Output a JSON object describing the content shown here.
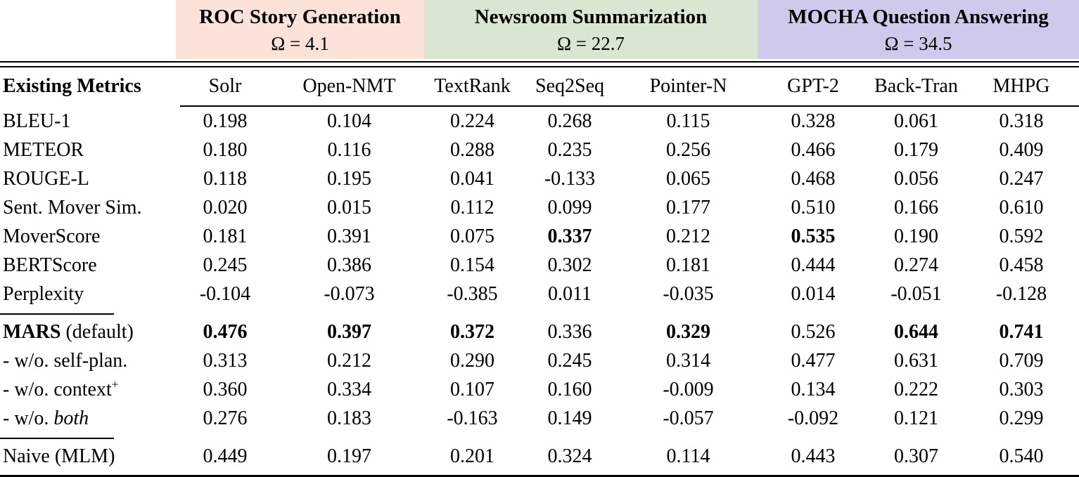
{
  "table": {
    "groups": [
      {
        "title": "ROC Story Generation",
        "omega": "Ω = 4.1",
        "bg": "#fbe2d9"
      },
      {
        "title": "Newsroom Summarization",
        "omega": "Ω = 22.7",
        "bg": "#d9e7d2"
      },
      {
        "title": "MOCHA Question Answering",
        "omega": "Ω = 34.5",
        "bg": "#cfc9ec"
      }
    ],
    "header": {
      "label": "Existing Metrics",
      "columns": [
        "Solr",
        "Open-NMT",
        "TextRank",
        "Seq2Seq",
        "Pointer-N",
        "GPT-2",
        "Back-Tran",
        "MHPG"
      ]
    },
    "rows": [
      {
        "label": [
          {
            "t": "BLEU-1"
          }
        ],
        "values": [
          "0.198",
          "0.104",
          "0.224",
          "0.268",
          "0.115",
          "0.328",
          "0.061",
          "0.318"
        ],
        "bold": []
      },
      {
        "label": [
          {
            "t": "METEOR"
          }
        ],
        "values": [
          "0.180",
          "0.116",
          "0.288",
          "0.235",
          "0.256",
          "0.466",
          "0.179",
          "0.409"
        ],
        "bold": []
      },
      {
        "label": [
          {
            "t": "ROUGE-L"
          }
        ],
        "values": [
          "0.118",
          "0.195",
          "0.041",
          "-0.133",
          "0.065",
          "0.468",
          "0.056",
          "0.247"
        ],
        "bold": []
      },
      {
        "label": [
          {
            "t": "Sent. Mover Sim."
          }
        ],
        "values": [
          "0.020",
          "0.015",
          "0.112",
          "0.099",
          "0.177",
          "0.510",
          "0.166",
          "0.610"
        ],
        "bold": []
      },
      {
        "label": [
          {
            "t": "MoverScore"
          }
        ],
        "values": [
          "0.181",
          "0.391",
          "0.075",
          "0.337",
          "0.212",
          "0.535",
          "0.190",
          "0.592"
        ],
        "bold": [
          3,
          5
        ]
      },
      {
        "label": [
          {
            "t": "BERTScore"
          }
        ],
        "values": [
          "0.245",
          "0.386",
          "0.154",
          "0.302",
          "0.181",
          "0.444",
          "0.274",
          "0.458"
        ],
        "bold": []
      },
      {
        "label": [
          {
            "t": "Perplexity"
          }
        ],
        "values": [
          "-0.104",
          "-0.073",
          "-0.385",
          "0.011",
          "-0.035",
          "0.014",
          "-0.051",
          "-0.128"
        ],
        "bold": []
      },
      {
        "rule_above": true,
        "label": [
          {
            "t": "MARS",
            "s": "bold"
          },
          {
            "t": " (default)"
          }
        ],
        "values": [
          "0.476",
          "0.397",
          "0.372",
          "0.336",
          "0.329",
          "0.526",
          "0.644",
          "0.741"
        ],
        "bold": [
          0,
          1,
          2,
          4,
          6,
          7
        ]
      },
      {
        "label": [
          {
            "t": "- w/o. self-plan."
          }
        ],
        "values": [
          "0.313",
          "0.212",
          "0.290",
          "0.245",
          "0.314",
          "0.477",
          "0.631",
          "0.709"
        ],
        "bold": []
      },
      {
        "label": [
          {
            "t": "- w/o. context"
          },
          {
            "t": "+",
            "s": "sup"
          }
        ],
        "values": [
          "0.360",
          "0.334",
          "0.107",
          "0.160",
          "-0.009",
          "0.134",
          "0.222",
          "0.303"
        ],
        "bold": []
      },
      {
        "label": [
          {
            "t": "- w/o. "
          },
          {
            "t": "both",
            "s": "italic"
          }
        ],
        "values": [
          "0.276",
          "0.183",
          "-0.163",
          "0.149",
          "-0.057",
          "-0.092",
          "0.121",
          "0.299"
        ],
        "bold": []
      },
      {
        "rule_above": true,
        "label": [
          {
            "t": "Naive (MLM)"
          }
        ],
        "values": [
          "0.449",
          "0.197",
          "0.201",
          "0.324",
          "0.114",
          "0.443",
          "0.307",
          "0.540"
        ],
        "bold": []
      }
    ]
  }
}
